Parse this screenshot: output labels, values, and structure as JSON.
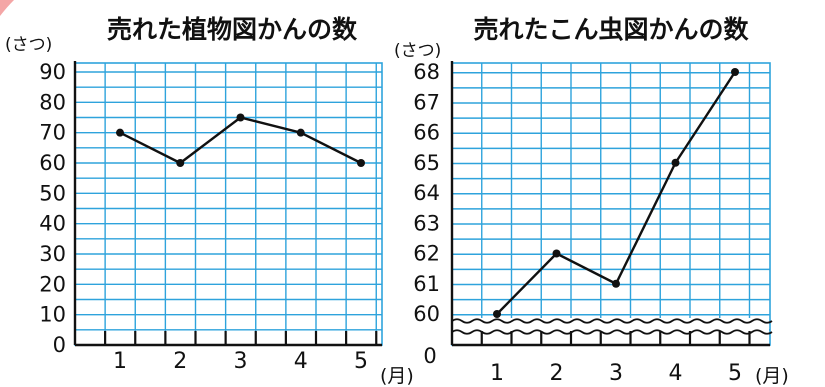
{
  "colors": {
    "grid": "#2ea3dc",
    "line": "#111111",
    "corner_accent": "#f4a6a6"
  },
  "chart_data": [
    {
      "type": "line",
      "title": "売れた植物図かんの数",
      "ylabel": "(さつ)",
      "xlabel": "(月)",
      "x": [
        "1",
        "2",
        "3",
        "4",
        "5"
      ],
      "values": [
        70,
        60,
        75,
        70,
        60
      ],
      "ylim": [
        0,
        90
      ],
      "yticks": [
        "0",
        "10",
        "20",
        "30",
        "40",
        "50",
        "60",
        "70",
        "80",
        "90"
      ],
      "grid": true,
      "axis_break": false
    },
    {
      "type": "line",
      "title": "売れたこん虫図かんの数",
      "ylabel": "(さつ)",
      "xlabel": "(月)",
      "x": [
        "1",
        "2",
        "3",
        "4",
        "5"
      ],
      "values": [
        60,
        62,
        61,
        65,
        68
      ],
      "ylim": [
        60,
        68
      ],
      "yticks": [
        "60",
        "61",
        "62",
        "63",
        "64",
        "65",
        "66",
        "67",
        "68"
      ],
      "origin_label": "0",
      "grid": true,
      "axis_break": true
    }
  ]
}
